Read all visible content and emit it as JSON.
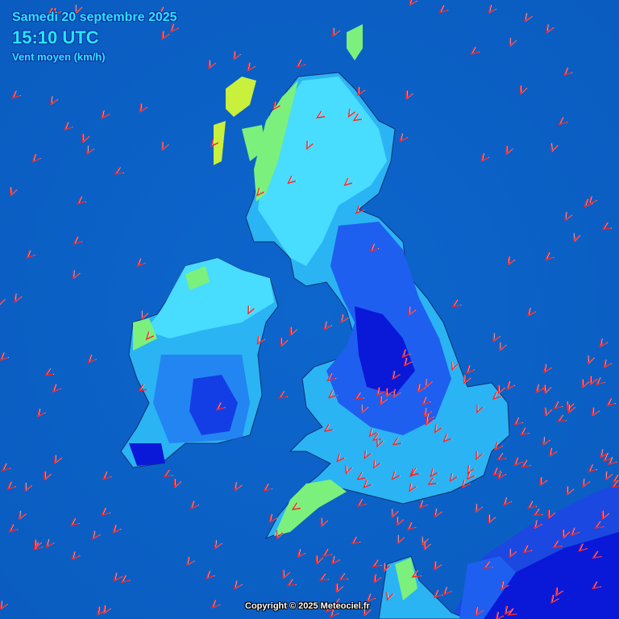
{
  "header": {
    "date": "Samedi 20 septembre 2025",
    "time": "15:10 UTC",
    "parameter": "Vent moyen (km/h)"
  },
  "footer": {
    "copyright": "Copyright © 2025 Meteociel.fr"
  },
  "colors": {
    "sea": "#0b5fc4",
    "wind_very_low": "#0000e0",
    "wind_low": "#1e5ff0",
    "wind_mid": "#2aa8f0",
    "wind_high": "#50e6ff",
    "wind_higher": "#7cf07c",
    "wind_highest": "#c8f03c",
    "arrows": "#ff2020"
  },
  "map": {
    "region": "British Isles",
    "arrow_icon": "wind-direction-chevron"
  }
}
